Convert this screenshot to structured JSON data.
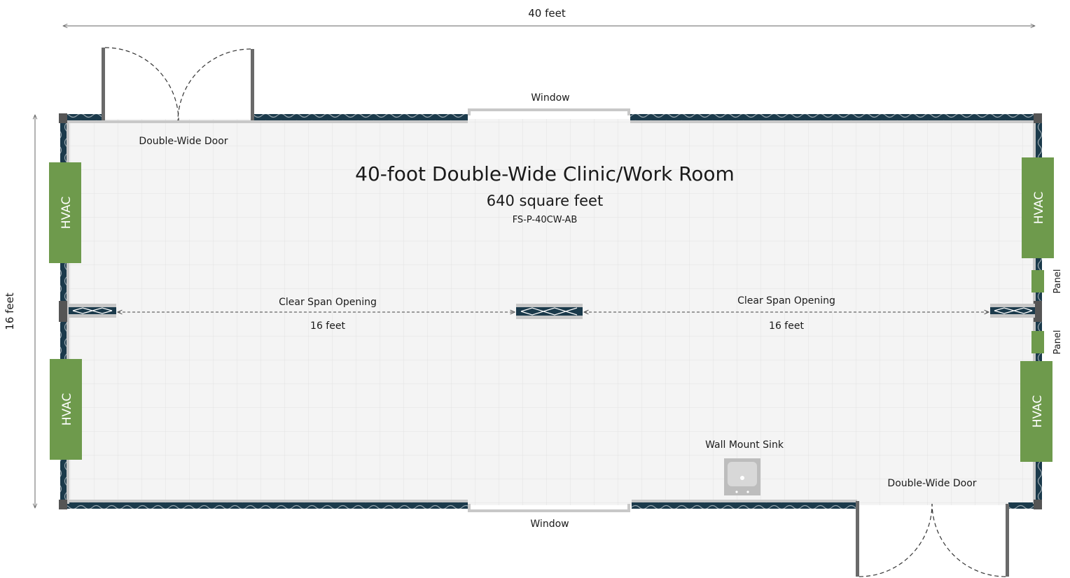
{
  "colors": {
    "wall": "#1b3a4b",
    "wall_trim": "#c8c8c8",
    "corner_post": "#555555",
    "floor": "#f4f4f4",
    "grid": "#e2e2e2",
    "hvac": "#6e9a4c",
    "sink": "#bdbdbd"
  },
  "dimensions": {
    "width_label": "40 feet",
    "height_label": "16 feet"
  },
  "room": {
    "title": "40-foot Double-Wide Clinic/Work Room",
    "area": "640 square feet",
    "model": "FS-P-40CW-AB"
  },
  "labels": {
    "door_top": "Double-Wide Door",
    "door_bottom": "Double-Wide Door",
    "window_top": "Window",
    "window_bottom": "Window",
    "sink": "Wall Mount Sink",
    "span_left": "Clear Span Opening",
    "span_left_size": "16 feet",
    "span_right": "Clear Span Opening",
    "span_right_size": "16 feet"
  },
  "hvac_units": [
    {
      "id": "left-top",
      "label": "HVAC"
    },
    {
      "id": "left-bottom",
      "label": "HVAC"
    },
    {
      "id": "right-top",
      "label": "HVAC"
    },
    {
      "id": "right-bottom",
      "label": "HVAC"
    }
  ],
  "panels": [
    {
      "id": "upper",
      "label": "Panel"
    },
    {
      "id": "lower",
      "label": "Panel"
    }
  ],
  "icons": {
    "door": "double-swing-door-icon",
    "window": "window-icon",
    "sink": "sink-icon",
    "hvac": "hvac-unit-icon",
    "panel": "electrical-panel-icon",
    "dimension": "dimension-arrow-icon"
  }
}
